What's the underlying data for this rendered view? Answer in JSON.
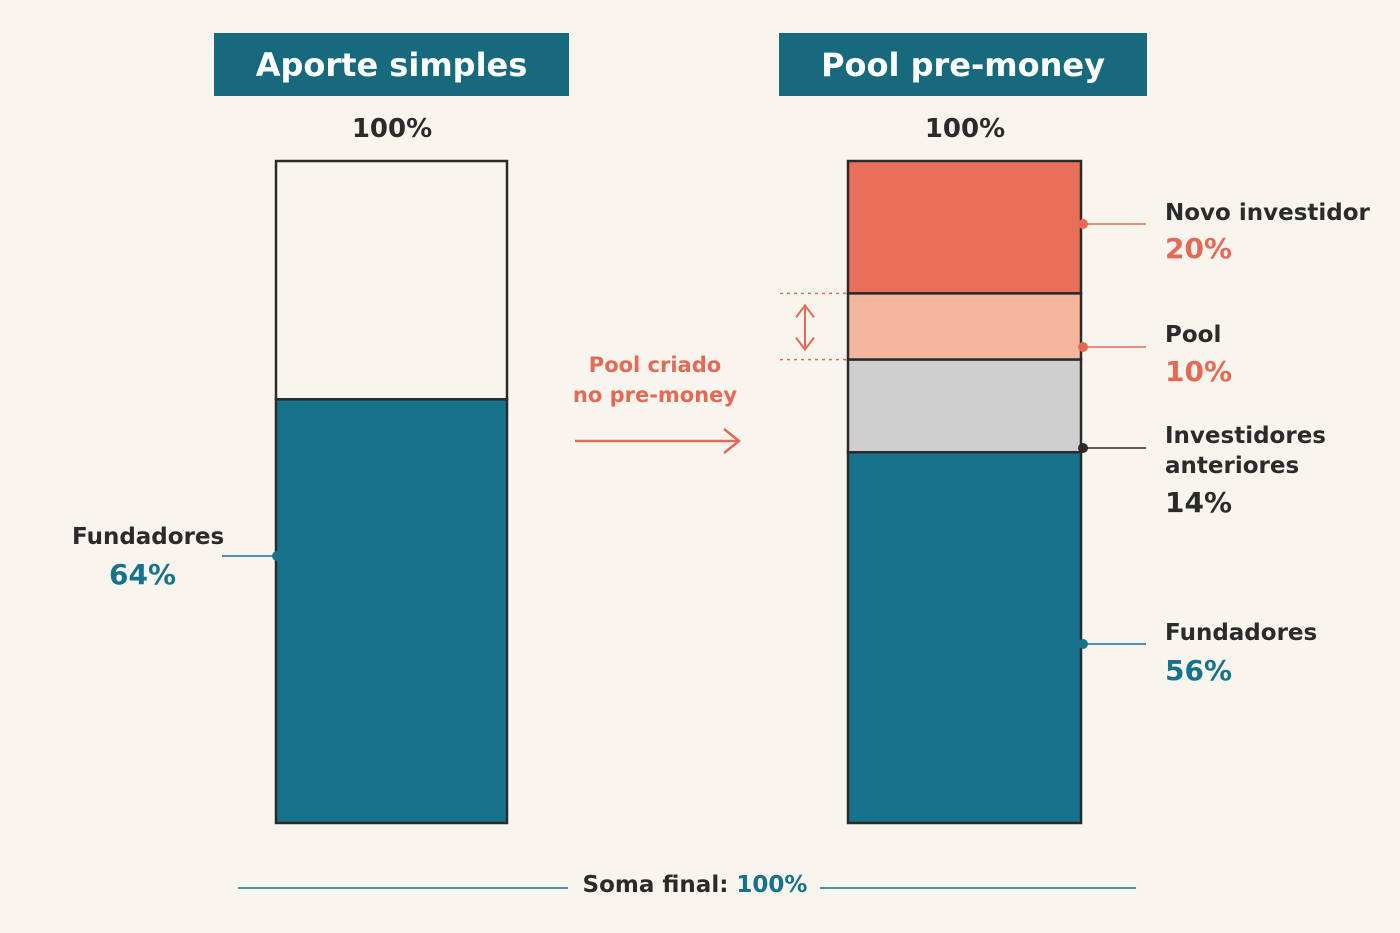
{
  "colors": {
    "teal": "#17728b",
    "coral": "#e8705b",
    "peach": "#f4b79d",
    "gray": "#cfcfcf",
    "header": "#176a7d"
  },
  "left": {
    "title": "Aporte simples",
    "total_label": "100%",
    "segments": [
      {
        "name": "",
        "label": "",
        "value": "",
        "share": 36,
        "color": "empty"
      },
      {
        "name": "Fundadores",
        "label": "Fundadores",
        "value": "64%",
        "share": 64,
        "color": "teal"
      }
    ]
  },
  "right": {
    "title": "Pool pre-money",
    "total_label": "100%",
    "segments": [
      {
        "name": "Novo investidor",
        "label": "Novo investidor",
        "value": "20%",
        "share": 20,
        "color": "coral"
      },
      {
        "name": "Pool",
        "label": "Pool",
        "value": "10%",
        "share": 10,
        "color": "peach"
      },
      {
        "name": "Investidores anteriores",
        "label_line1": "Investidores",
        "label_line2": "anteriores",
        "value": "14%",
        "share": 14,
        "color": "gray"
      },
      {
        "name": "Fundadores",
        "label": "Fundadores",
        "value": "56%",
        "share": 56,
        "color": "teal"
      }
    ]
  },
  "annotation": {
    "line1": "Pool criado",
    "line2": "no pre-money"
  },
  "footer": {
    "label": "Soma final:",
    "value": "100%"
  },
  "chart_data": [
    {
      "type": "bar",
      "title": "Aporte simples",
      "categories": [
        "Fundadores"
      ],
      "values": [
        64
      ],
      "total": 100
    },
    {
      "type": "bar",
      "title": "Pool pre-money",
      "categories": [
        "Novo investidor",
        "Pool",
        "Investidores anteriores",
        "Fundadores"
      ],
      "values": [
        20,
        10,
        14,
        56
      ],
      "total": 100
    }
  ]
}
